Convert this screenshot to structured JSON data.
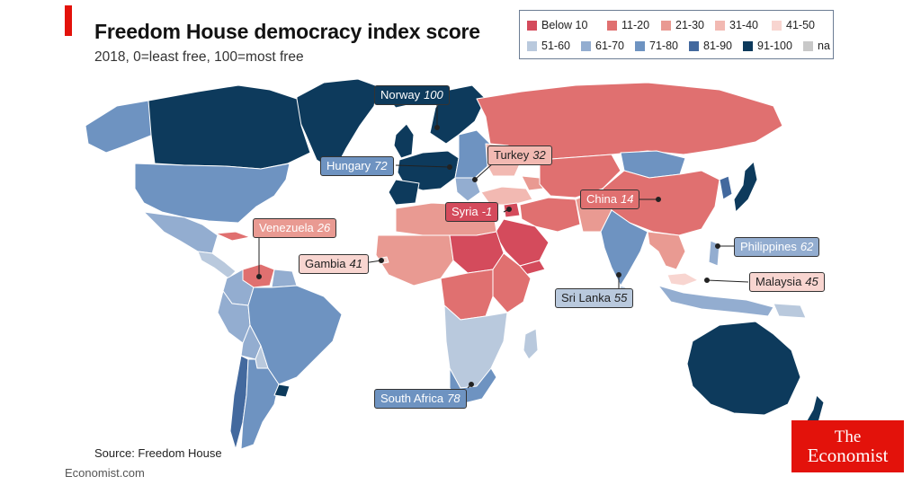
{
  "header": {
    "title": "Freedom House democracy index score",
    "subtitle": "2018, 0=least free, 100=most free"
  },
  "legend": [
    {
      "label": "Below 10",
      "color": "#d44b5c"
    },
    {
      "label": "11-20",
      "color": "#e07070"
    },
    {
      "label": "21-30",
      "color": "#e99a92"
    },
    {
      "label": "31-40",
      "color": "#f2b9b2"
    },
    {
      "label": "41-50",
      "color": "#f8d5d0"
    },
    {
      "label": "51-60",
      "color": "#b9c9dd"
    },
    {
      "label": "61-70",
      "color": "#93add0"
    },
    {
      "label": "71-80",
      "color": "#6e93c1"
    },
    {
      "label": "81-90",
      "color": "#43699e"
    },
    {
      "label": "91-100",
      "color": "#0d3a5c"
    },
    {
      "label": "na",
      "color": "#c8c8c8"
    }
  ],
  "callouts": [
    {
      "name": "Norway",
      "value": "100"
    },
    {
      "name": "Turkey",
      "value": "32"
    },
    {
      "name": "Hungary",
      "value": "72"
    },
    {
      "name": "Syria",
      "value": "-1"
    },
    {
      "name": "China",
      "value": "14"
    },
    {
      "name": "Venezuela",
      "value": "26"
    },
    {
      "name": "Philippines",
      "value": "62"
    },
    {
      "name": "Gambia",
      "value": "41"
    },
    {
      "name": "Malaysia",
      "value": "45"
    },
    {
      "name": "Sri Lanka",
      "value": "55"
    },
    {
      "name": "South Africa",
      "value": "78"
    }
  ],
  "footer": {
    "source": "Source: Freedom House",
    "credit": "Economist.com"
  },
  "logo": {
    "line1": "The",
    "line2": "Economist"
  }
}
